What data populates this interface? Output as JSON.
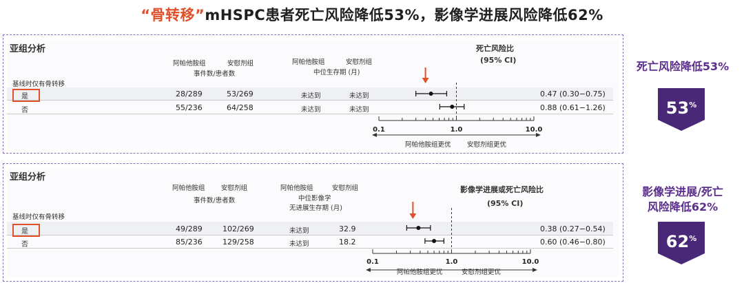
{
  "title": {
    "accent": "“骨转移”",
    "rest": "mHSPC患者死亡风险降低53%，影像学进展风险降低62%"
  },
  "panel1": {
    "subgroup_label": "亚组分析",
    "col_abi": "阿帕他胺组",
    "col_pbo": "安慰剂组",
    "events_label": "事件数/患者数",
    "col_abi2": "阿帕他胺组",
    "col_pbo2": "安慰剂组",
    "median_label": "中位生存期 (月)",
    "hr_title": "死亡风险比",
    "hr_ci": "(95% CI)",
    "baseline_label": "基线时仅有骨转移",
    "rows": [
      {
        "name": "是",
        "abi": "28/289",
        "pbo": "53/269",
        "med_abi": "未达到",
        "med_pbo": "未达到",
        "hr_text": "0.47 (0.30−0.75)"
      },
      {
        "name": "否",
        "abi": "55/236",
        "pbo": "64/258",
        "med_abi": "未达到",
        "med_pbo": "未达到",
        "hr_text": "0.88 (0.61−1.26)"
      }
    ],
    "favors_left": "阿帕他胺组更优",
    "favors_right": "安慰剂组更优"
  },
  "panel2": {
    "subgroup_label": "亚组分析",
    "col_abi": "阿帕他胺组",
    "col_pbo": "安慰剂组",
    "events_label": "事件数/患者数",
    "col_abi2": "阿帕他胺组",
    "col_pbo2": "安慰剂组",
    "median_label1": "中位影像学",
    "median_label2": "无进展生存期 (月)",
    "hr_title": "影像学进展或死亡风险比",
    "hr_ci": "(95% CI)",
    "baseline_label": "基线时仅有骨转移",
    "rows": [
      {
        "name": "是",
        "abi": "49/289",
        "pbo": "102/269",
        "med_abi": "未达到",
        "med_pbo": "32.9",
        "hr_text": "0.38 (0.27−0.54)"
      },
      {
        "name": "否",
        "abi": "85/236",
        "pbo": "129/258",
        "med_abi": "未达到",
        "med_pbo": "18.2",
        "hr_text": "0.60 (0.46−0.80)"
      }
    ],
    "favors_left": "阿帕他胺组更优",
    "favors_right": "安慰剂组更优"
  },
  "side1": {
    "heading": "死亡风险降低53%",
    "badge_value": "53",
    "badge_unit": "%"
  },
  "side2": {
    "heading_line1": "影像学进展/死亡",
    "heading_line2": "风险降低62%",
    "badge_value": "62",
    "badge_unit": "%"
  },
  "colors": {
    "accent": "#e0502a",
    "purple": "#5c2e8c",
    "badge": "#4a2878"
  },
  "chart_data": [
    {
      "type": "forest",
      "title": "死亡风险比",
      "subtitle": "(95% CI)",
      "xscale": "log",
      "xlim": [
        0.1,
        10.0
      ],
      "xticks": [
        "0.1",
        "1.0",
        "10.0"
      ],
      "reference_line": 1.0,
      "categories": [
        "是",
        "否"
      ],
      "hr": [
        0.47,
        0.88
      ],
      "ci_low": [
        0.3,
        0.61
      ],
      "ci_high": [
        0.75,
        1.26
      ]
    },
    {
      "type": "forest",
      "title": "影像学进展或死亡风险比",
      "subtitle": "(95% CI)",
      "xscale": "log",
      "xlim": [
        0.1,
        10.0
      ],
      "xticks": [
        "0.1",
        "1.0",
        "10.0"
      ],
      "reference_line": 1.0,
      "categories": [
        "是",
        "否"
      ],
      "hr": [
        0.38,
        0.6
      ],
      "ci_low": [
        0.27,
        0.46
      ],
      "ci_high": [
        0.54,
        0.8
      ]
    }
  ]
}
